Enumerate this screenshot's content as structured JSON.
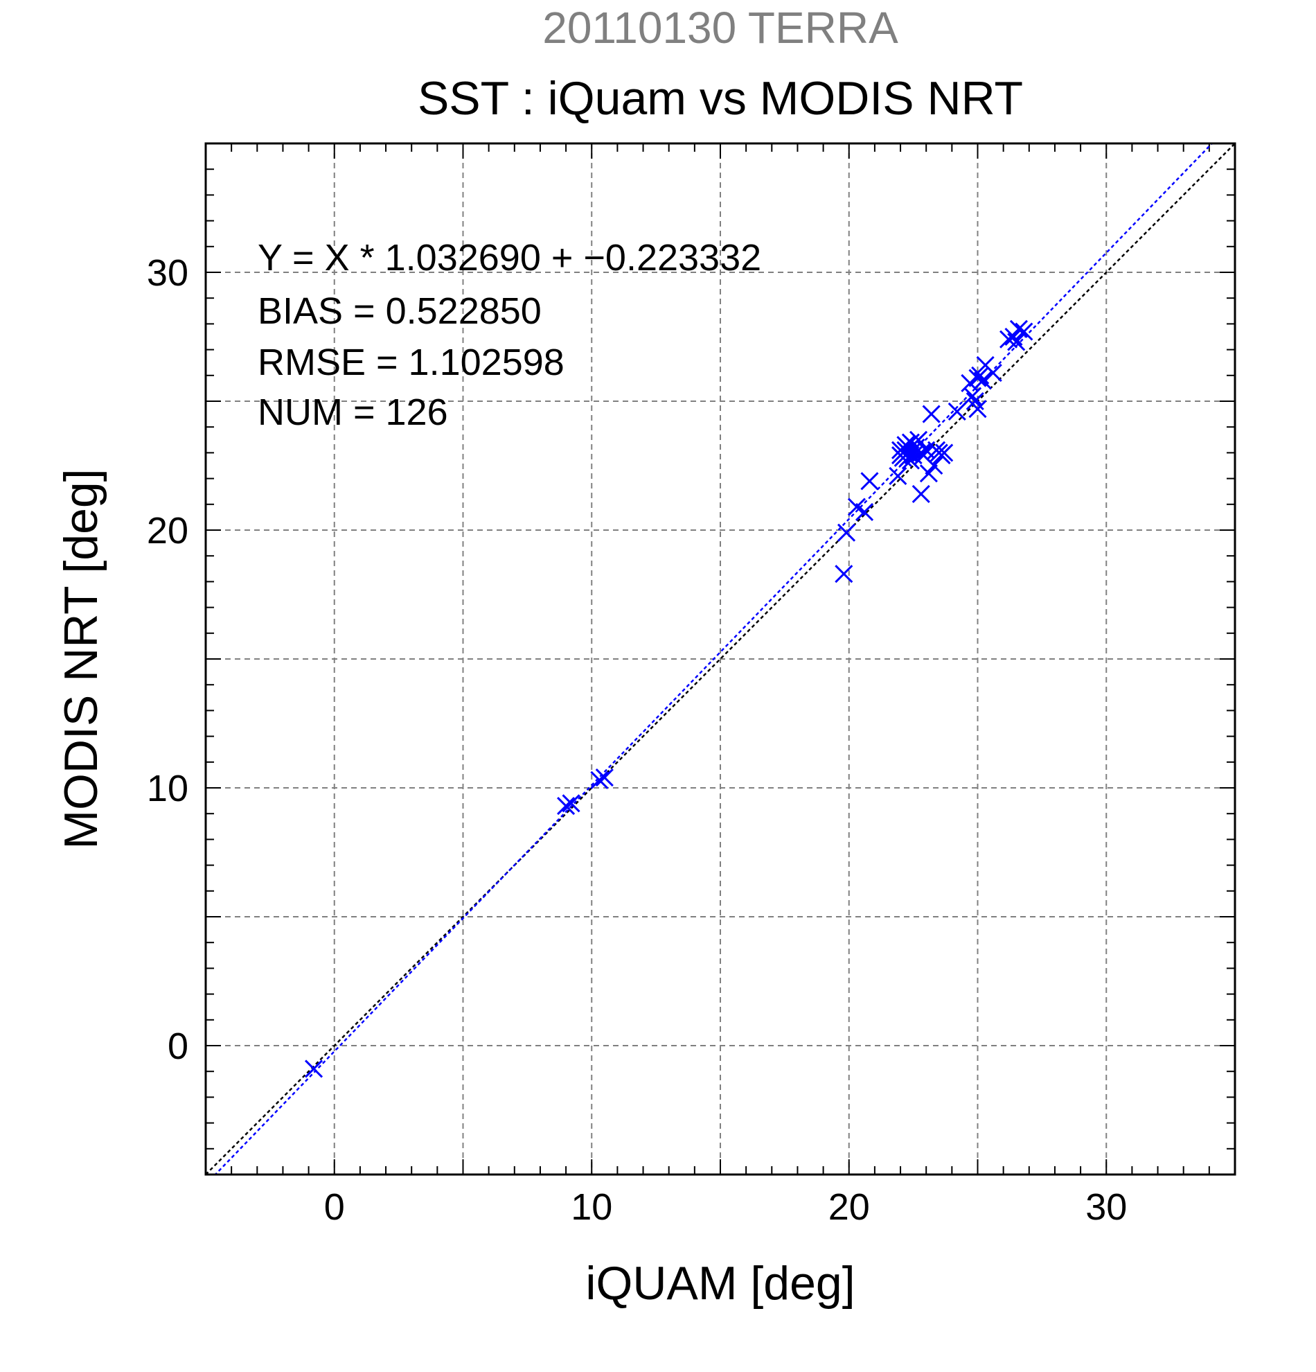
{
  "chart_data": {
    "type": "scatter",
    "title": "20110130 TERRA",
    "subtitle": "SST : iQuam vs MODIS NRT",
    "xlabel": "iQUAM [deg]",
    "ylabel": "MODIS NRT [deg]",
    "xlim": [
      -5,
      35
    ],
    "ylim": [
      -5,
      35
    ],
    "xticks": [
      0,
      10,
      20,
      30
    ],
    "yticks": [
      0,
      10,
      20,
      30
    ],
    "xtick_labels": [
      "0",
      "10",
      "20",
      "30"
    ],
    "ytick_labels": [
      "0",
      "10",
      "20",
      "30"
    ],
    "grid": true,
    "colors": {
      "title": "#808080",
      "points": "#0000ff",
      "fit_line": "#0000ff",
      "identity_line": "#000000",
      "grid": "#808080"
    },
    "stats": [
      "Y = X * 1.032690 + −0.223332",
      "BIAS = 0.522850",
      "RMSE = 1.102598",
      "NUM = 126"
    ],
    "fit": {
      "slope": 1.03269,
      "intercept": -0.223332
    },
    "series": [
      {
        "marker": "x",
        "points": [
          [
            -0.8,
            -0.9
          ],
          [
            9.0,
            9.3
          ],
          [
            9.2,
            9.4
          ],
          [
            10.3,
            10.3
          ],
          [
            10.5,
            10.4
          ],
          [
            19.8,
            18.3
          ],
          [
            19.9,
            19.9
          ],
          [
            20.3,
            20.9
          ],
          [
            20.6,
            20.7
          ],
          [
            20.8,
            21.9
          ],
          [
            21.9,
            22.1
          ],
          [
            22.0,
            23.1
          ],
          [
            22.1,
            22.8
          ],
          [
            22.2,
            23.3
          ],
          [
            22.3,
            23.0
          ],
          [
            22.4,
            23.4
          ],
          [
            22.5,
            22.9
          ],
          [
            22.6,
            23.2
          ],
          [
            22.7,
            23.5
          ],
          [
            22.8,
            23.0
          ],
          [
            22.2,
            23.1
          ],
          [
            22.3,
            22.8
          ],
          [
            22.0,
            22.9
          ],
          [
            22.5,
            23.3
          ],
          [
            22.4,
            22.7
          ],
          [
            22.8,
            21.4
          ],
          [
            22.9,
            22.9
          ],
          [
            23.0,
            23.1
          ],
          [
            23.1,
            22.2
          ],
          [
            23.2,
            24.5
          ],
          [
            23.3,
            22.5
          ],
          [
            23.4,
            23.1
          ],
          [
            23.5,
            23.0
          ],
          [
            23.6,
            22.9
          ],
          [
            23.7,
            23.0
          ],
          [
            24.2,
            24.6
          ],
          [
            24.7,
            25.7
          ],
          [
            24.8,
            25.2
          ],
          [
            24.9,
            25.0
          ],
          [
            25.0,
            24.7
          ],
          [
            25.0,
            25.9
          ],
          [
            25.1,
            26.0
          ],
          [
            25.2,
            25.8
          ],
          [
            25.3,
            26.4
          ],
          [
            25.6,
            26.1
          ],
          [
            26.2,
            27.4
          ],
          [
            26.4,
            27.5
          ],
          [
            26.5,
            27.3
          ],
          [
            26.6,
            27.8
          ],
          [
            26.8,
            27.7
          ]
        ]
      }
    ]
  }
}
